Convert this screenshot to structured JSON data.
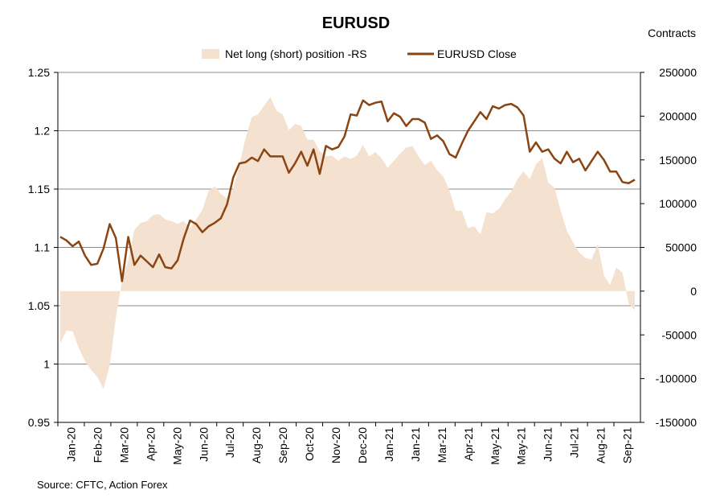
{
  "chart_data": {
    "type": "area+line",
    "title": "EURUSD",
    "right_axis_title": "Contracts",
    "source": "Source: CFTC, Action Forex",
    "legend": {
      "placement": "top-center",
      "items": [
        {
          "label": "Net long (short) position -RS",
          "kind": "area",
          "color": "#f5e1cf"
        },
        {
          "label": "EURUSD Close",
          "kind": "line",
          "color": "#8b4513"
        }
      ]
    },
    "left_axis": {
      "min": 0.95,
      "max": 1.25,
      "ticks": [
        "0.95",
        "1",
        "1.05",
        "1.1",
        "1.15",
        "1.2",
        "1.25"
      ]
    },
    "right_axis": {
      "min": -150000,
      "max": 250000,
      "ticks": [
        "-150000",
        "-100000",
        "-50000",
        "0",
        "50000",
        "100000",
        "150000",
        "200000",
        "250000"
      ]
    },
    "x_tick_labels": [
      "Jan-20",
      "Feb-20",
      "Mar-20",
      "Apr-20",
      "May-20",
      "Jun-20",
      "Jul-20",
      "Aug-20",
      "Sep-20",
      "Oct-20",
      "Nov-20",
      "Dec-20",
      "Jan-21",
      "Jan-21",
      "Mar-21",
      "Apr-21",
      "May-21",
      "May-21",
      "Jun-21",
      "Jul-21",
      "Aug-21",
      "Sep-21"
    ],
    "gridlines": "horizontal",
    "series": [
      {
        "name": "EURUSD Close",
        "axis": "left",
        "color": "#8b4513",
        "values": [
          1.109,
          1.106,
          1.101,
          1.105,
          1.093,
          1.085,
          1.086,
          1.099,
          1.12,
          1.108,
          1.071,
          1.109,
          1.085,
          1.093,
          1.088,
          1.083,
          1.094,
          1.083,
          1.082,
          1.089,
          1.108,
          1.123,
          1.12,
          1.113,
          1.118,
          1.121,
          1.125,
          1.137,
          1.16,
          1.172,
          1.173,
          1.177,
          1.174,
          1.184,
          1.178,
          1.178,
          1.178,
          1.164,
          1.172,
          1.182,
          1.17,
          1.184,
          1.163,
          1.187,
          1.184,
          1.186,
          1.195,
          1.214,
          1.213,
          1.226,
          1.222,
          1.224,
          1.225,
          1.208,
          1.215,
          1.212,
          1.204,
          1.21,
          1.21,
          1.207,
          1.193,
          1.196,
          1.191,
          1.18,
          1.177,
          1.189,
          1.2,
          1.208,
          1.216,
          1.21,
          1.221,
          1.219,
          1.222,
          1.223,
          1.22,
          1.213,
          1.182,
          1.19,
          1.182,
          1.184,
          1.176,
          1.172,
          1.182,
          1.173,
          1.176,
          1.166,
          1.174,
          1.182,
          1.175,
          1.165,
          1.165,
          1.156,
          1.155,
          1.158
        ]
      },
      {
        "name": "Net long (short) position -RS",
        "axis": "right",
        "color": "#f5e1cf",
        "values": [
          -60000,
          -45000,
          -46000,
          -65000,
          -80000,
          -90000,
          -98000,
          -112000,
          -85000,
          -30000,
          12000,
          35000,
          70000,
          78000,
          80000,
          87000,
          88000,
          82000,
          80000,
          77000,
          80000,
          72000,
          82000,
          93000,
          114000,
          120000,
          111000,
          106000,
          117000,
          145000,
          175000,
          199000,
          202000,
          212000,
          222000,
          206000,
          202000,
          184000,
          191000,
          189000,
          173000,
          173000,
          160000,
          154000,
          155000,
          149000,
          154000,
          151000,
          155000,
          167000,
          154000,
          159000,
          152000,
          141000,
          149000,
          157000,
          164000,
          166000,
          154000,
          144000,
          149000,
          138000,
          131000,
          115000,
          92000,
          92000,
          72000,
          74000,
          65000,
          90000,
          89000,
          94000,
          105000,
          114000,
          128000,
          137000,
          128000,
          145000,
          152000,
          124000,
          118000,
          92000,
          69000,
          56000,
          44000,
          38000,
          36000,
          54000,
          18000,
          7000,
          27000,
          21000,
          -14000,
          -22000
        ]
      }
    ]
  }
}
